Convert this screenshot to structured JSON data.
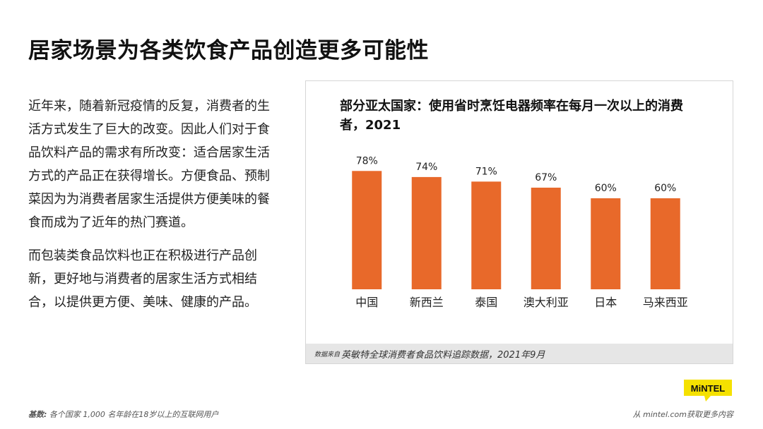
{
  "page": {
    "title": "居家场景为各类饮食产品创造更多可能性",
    "paragraphs": [
      "近年来，随着新冠疫情的反复，消费者的生活方式发生了巨大的改变。因此人们对于食品饮料产品的需求有所改变：适合居家生活方式的产品正在获得增长。方便食品、预制菜因为为消费者居家生活提供方便美味的餐食而成为了近年的热门赛道。",
      "而包装类食品饮料也正在积极进行产品创新，更好地与消费者的居家生活方式相结合，以提供更方便、美味、健康的产品。"
    ]
  },
  "chart_data": {
    "type": "bar",
    "title": "部分亚太国家：使用省时烹饪电器频率在每月一次以上的消费者，2021",
    "categories": [
      "中国",
      "新西兰",
      "泰国",
      "澳大利亚",
      "日本",
      "马来西亚"
    ],
    "values": [
      78,
      74,
      71,
      67,
      60,
      60
    ],
    "value_labels": [
      "78%",
      "74%",
      "71%",
      "67%",
      "60%",
      "60%"
    ],
    "ylim": [
      0,
      100
    ],
    "xlabel": "",
    "ylabel": "",
    "grid": false,
    "bar_color": "#E8692A"
  },
  "source": {
    "label": "数据来自",
    "text": "英敏特全球消费者食品饮料追踪数据，2021年9月"
  },
  "footer": {
    "base_label": "基数:",
    "base_text": " 各个国家 1,000 名年龄在18岁以上的互联网用户",
    "link_text": "从 mintel.com获取更多内容"
  },
  "logo": {
    "text": "MiNTEL",
    "color": "#F5E100"
  }
}
